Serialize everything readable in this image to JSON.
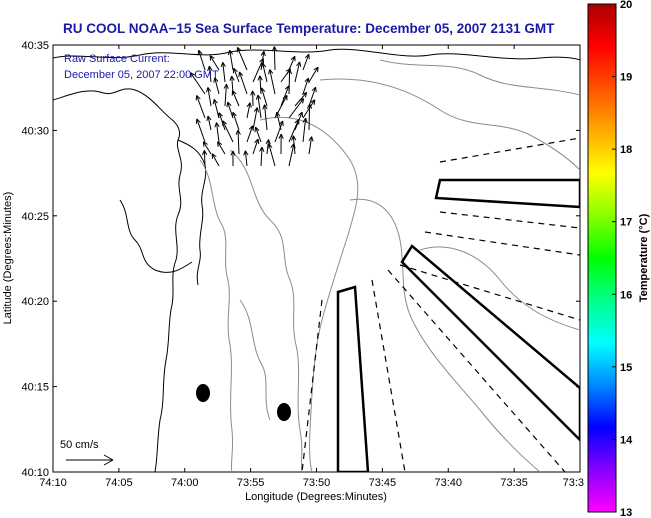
{
  "title": "RU COOL  NOAA−15  Sea Surface Temperature:  December 05, 2007 2131 GMT",
  "current_annotation": {
    "line1": "Raw Surface Current:",
    "line2": "December 05, 2007 22:00 GMT"
  },
  "scale_label": "50 cm/s",
  "x_axis": {
    "label": "Longitude (Degrees:Minutes)",
    "ticks": [
      "74:10",
      "74:05",
      "74:00",
      "73:55",
      "73:50",
      "73:45",
      "73:40",
      "73:35",
      "73:3"
    ]
  },
  "y_axis": {
    "label": "Latitude (Degrees:Minutes)",
    "ticks": [
      "40:35",
      "40:30",
      "40:25",
      "40:20",
      "40:15",
      "40:10"
    ]
  },
  "colorbar": {
    "label": "Temperature (°C)",
    "ticks": [
      "20",
      "19",
      "18",
      "17",
      "16",
      "15",
      "14",
      "13"
    ],
    "min": 13,
    "max": 20,
    "colors": [
      "#ff00ff",
      "#8800ff",
      "#0000ff",
      "#0088ff",
      "#00ffff",
      "#00ff88",
      "#00ff00",
      "#88ff00",
      "#ffff00",
      "#ffaa00",
      "#ff5500",
      "#ff0000",
      "#aa0000"
    ]
  },
  "colors": {
    "title": "#1a1aa6",
    "contour": "#8c8c8c",
    "coast": "#000000"
  }
}
